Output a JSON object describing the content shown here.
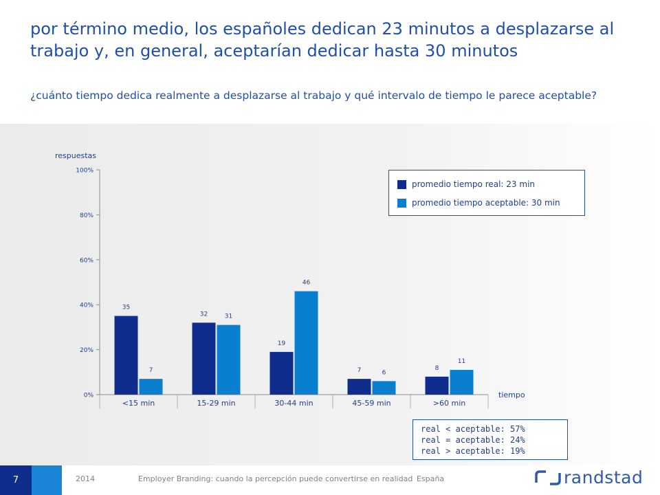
{
  "page": {
    "title": "por término medio, los españoles dedican 23 minutos a desplazarse al trabajo y, en general, aceptarían dedicar hasta 30 minutos",
    "subtitle": "¿cuánto tiempo dedica realmente a desplazarse al trabajo y qué intervalo de tiempo le parece aceptable?"
  },
  "legend": {
    "items": [
      {
        "label": "promedio tiempo real: 23 min",
        "color": "#0f2d8c"
      },
      {
        "label": "promedio tiempo aceptable: 30 min",
        "color": "#0a7fd0"
      }
    ]
  },
  "note": {
    "lines": [
      "real < aceptable: 57%",
      "real = aceptable: 24%",
      "real > aceptable: 19%"
    ]
  },
  "footer": {
    "page_number": "7",
    "year": "2014",
    "doc_title": "Employer Branding: cuando la percepción puede convertirse en realidad",
    "country": "España",
    "brand": "randstad"
  },
  "chart_data": {
    "type": "bar",
    "ylabel": "respuestas",
    "xlabel": "tiempo",
    "ylim": [
      0,
      100
    ],
    "yticks": [
      "0%",
      "20%",
      "40%",
      "60%",
      "80%",
      "100%"
    ],
    "categories": [
      "<15 min",
      "15-29 min",
      "30-44 min",
      "45-59 min",
      ">60 min"
    ],
    "series": [
      {
        "name": "promedio tiempo real: 23 min",
        "color": "#0f2d8c",
        "values": [
          35,
          32,
          19,
          7,
          8
        ]
      },
      {
        "name": "promedio tiempo aceptable: 30 min",
        "color": "#0a7fd0",
        "values": [
          7,
          31,
          46,
          6,
          11
        ]
      }
    ],
    "grid": false,
    "legend_position": "top-right"
  }
}
